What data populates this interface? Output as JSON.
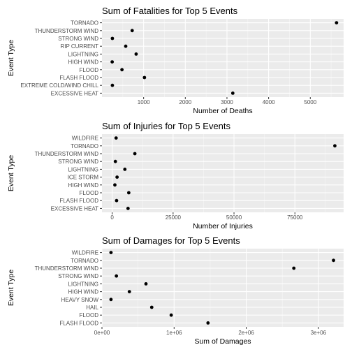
{
  "chart_data": [
    {
      "type": "scatter",
      "title": "Sum of Fatalities for Top 5 Events",
      "xlabel": "Number of Deaths",
      "ylabel": "Event Type",
      "xlim": [
        0,
        5800
      ],
      "xticks": [
        1000,
        2000,
        3000,
        4000,
        5000
      ],
      "xtick_labels": [
        "1000",
        "2000",
        "3000",
        "4000",
        "5000"
      ],
      "grid": true,
      "categories": [
        "TORNADO",
        "THUNDERSTORM WIND",
        "STRONG WIND",
        "RIP CURRENT",
        "LIGHTNING",
        "HIGH WIND",
        "FLOOD",
        "FLASH FLOOD",
        "EXTREME COLD/WIND CHILL",
        "EXCESSIVE HEAT"
      ],
      "values": [
        5630,
        725,
        250,
        570,
        820,
        245,
        480,
        1020,
        250,
        3140
      ]
    },
    {
      "type": "scatter",
      "title": "Sum of Injuries for Top 5 Events",
      "xlabel": "Number of Injuries",
      "ylabel": "Event Type",
      "xlim": [
        -4200,
        95000
      ],
      "xticks": [
        0,
        25000,
        50000,
        75000
      ],
      "xtick_labels": [
        "0",
        "25000",
        "50000",
        "75000"
      ],
      "grid": true,
      "categories": [
        "WILDFIRE",
        "TORNADO",
        "THUNDERSTORM WIND",
        "STRONG WIND",
        "LIGHTNING",
        "ICE STORM",
        "HIGH WIND",
        "FLOOD",
        "FLASH FLOOD",
        "EXCESSIVE HEAT"
      ],
      "values": [
        1600,
        91400,
        9300,
        1300,
        5200,
        2000,
        1100,
        6800,
        1800,
        6500
      ]
    },
    {
      "type": "scatter",
      "title": "Sum of Damages for Top 5 Events",
      "xlabel": "Sum of Damages",
      "ylabel": "Event Type",
      "xlim": [
        0,
        3350000
      ],
      "xticks": [
        0,
        1000000,
        2000000,
        3000000
      ],
      "xtick_labels": [
        "0e+00",
        "1e+06",
        "2e+06",
        "3e+06"
      ],
      "grid": true,
      "categories": [
        "WILDFIRE",
        "TORNADO",
        "THUNDERSTORM WIND",
        "STRONG WIND",
        "LIGHTNING",
        "HIGH WIND",
        "HEAVY SNOW",
        "HAIL",
        "FLOOD",
        "FLASH FLOOD"
      ],
      "values": [
        125000,
        3210000,
        2660000,
        200000,
        610000,
        380000,
        125000,
        690000,
        960000,
        1470000
      ]
    }
  ]
}
